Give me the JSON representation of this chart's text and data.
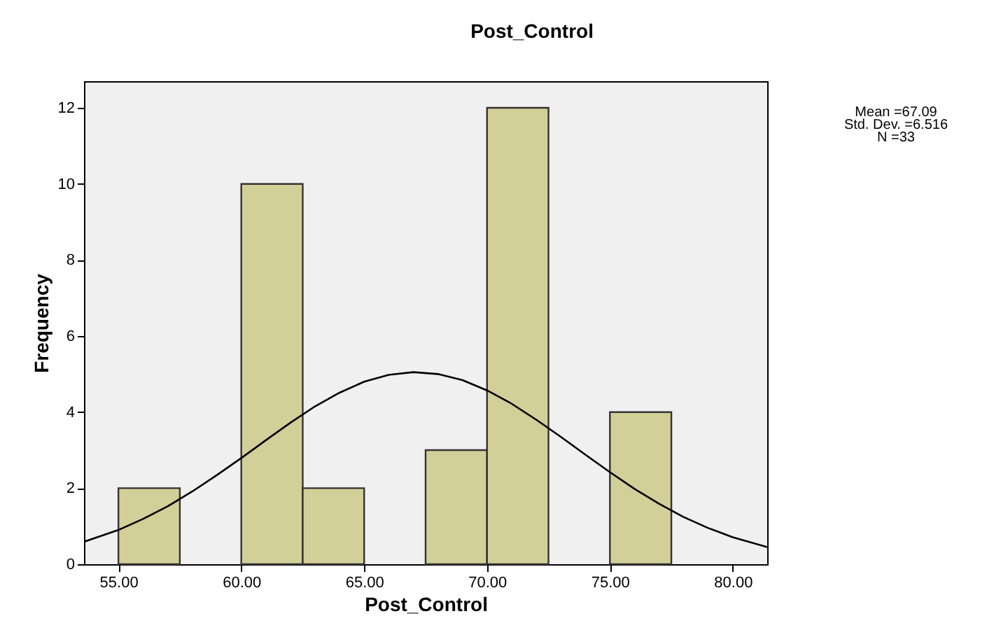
{
  "chart_data": {
    "type": "histogram",
    "title": "Post_Control",
    "xlabel": "Post_Control",
    "ylabel": "Frequency",
    "bins": [
      55,
      57.5,
      60,
      62.5,
      65,
      67.5,
      70,
      72.5,
      75,
      77.5
    ],
    "series": [
      {
        "color": "#d3cf98",
        "values": [
          2,
          0,
          10,
          2,
          0,
          3,
          12,
          0,
          4
        ]
      },
      {
        "type": "line",
        "color": "#000000",
        "x": [
          53.6,
          55,
          56,
          57,
          58,
          59,
          60,
          61,
          62,
          63,
          64,
          65,
          66,
          67,
          68,
          69,
          70,
          71,
          72,
          73,
          74,
          75,
          76,
          77,
          78,
          79,
          80,
          81.4
        ],
        "values": [
          0.59,
          0.9,
          1.19,
          1.52,
          1.91,
          2.34,
          2.79,
          3.26,
          3.72,
          4.15,
          4.51,
          4.8,
          4.98,
          5.05,
          5.0,
          4.84,
          4.57,
          4.22,
          3.8,
          3.35,
          2.88,
          2.42,
          1.98,
          1.59,
          1.24,
          0.95,
          0.71,
          0.45
        ]
      }
    ],
    "xlim": [
      53.6,
      81.4
    ],
    "xticks": [
      {
        "value": 55,
        "label": "55.00"
      },
      {
        "value": 60,
        "label": "60.00"
      },
      {
        "value": 65,
        "label": "65.00"
      },
      {
        "value": 70,
        "label": "70.00"
      },
      {
        "value": 75,
        "label": "75.00"
      },
      {
        "value": 80,
        "label": "80.00"
      }
    ],
    "ylim": [
      0,
      12.7
    ],
    "yticks": [
      0,
      2,
      4,
      6,
      8,
      10,
      12
    ],
    "grid": false,
    "annotations": [
      "Mean =67.09",
      "Std. Dev. =6.516",
      "N =33"
    ]
  }
}
